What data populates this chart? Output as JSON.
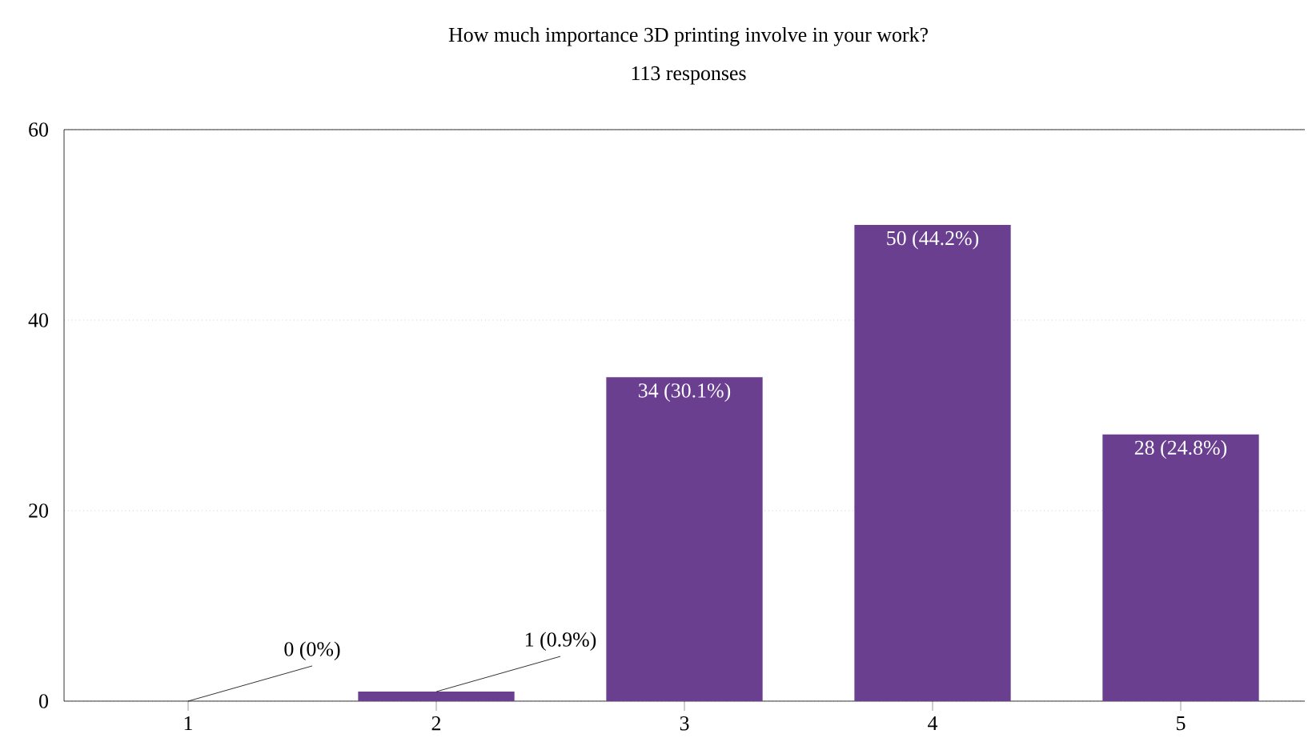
{
  "chart_data": {
    "type": "bar",
    "title": "How much importance 3D printing involve in your work?",
    "subtitle": "113 responses",
    "categories": [
      "1",
      "2",
      "3",
      "4",
      "5"
    ],
    "values": [
      0,
      1,
      34,
      50,
      28
    ],
    "value_labels": [
      "0 (0%)",
      "1 (0.9%)",
      "34 (30.1%)",
      "50 (44.2%)",
      "28 (24.8%)"
    ],
    "color": "#6a3f90",
    "ylim": [
      0,
      60
    ],
    "yticks": [
      0,
      20,
      40,
      60
    ],
    "grid": "y"
  }
}
